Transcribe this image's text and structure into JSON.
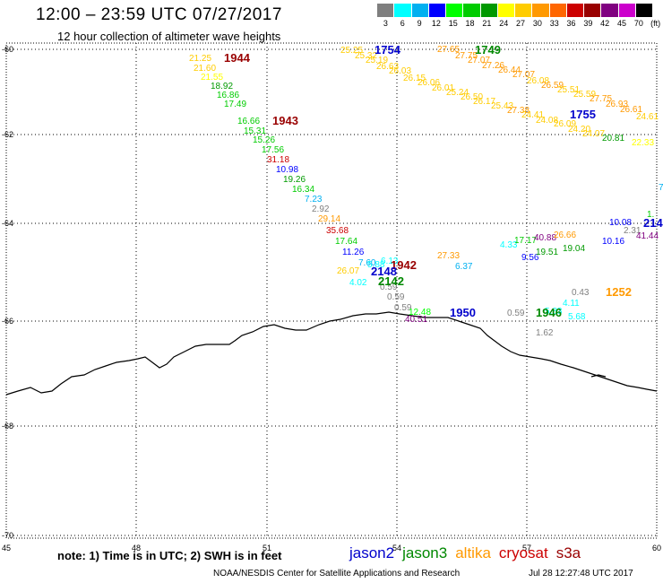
{
  "title": "12:00 – 23:59 UTC 07/27/2017",
  "subtitle": "12 hour collection of altimeter wave heights",
  "colorbar": {
    "unit": "(ft)",
    "ticks": [
      "3",
      "6",
      "9",
      "12",
      "15",
      "18",
      "21",
      "24",
      "27",
      "30",
      "33",
      "36",
      "39",
      "42",
      "45",
      "70"
    ],
    "colors": [
      "#7f7f7f",
      "#00ffff",
      "#00b0f0",
      "#0000ff",
      "#00ff00",
      "#00cc00",
      "#009900",
      "#ffff00",
      "#ffcc00",
      "#ff9900",
      "#ff6600",
      "#cc0000",
      "#990000",
      "#800080",
      "#cc00cc",
      "#000000"
    ]
  },
  "axes": {
    "lon_labels": [
      "45",
      "48",
      "51",
      "54",
      "57",
      "60"
    ],
    "lat_labels": [
      "-60",
      "-62",
      "-64",
      "-66",
      "-68",
      "-70"
    ]
  },
  "note": "note: 1) Time is in UTC; 2) SWH is in feet",
  "satellites": [
    {
      "name": "jason2",
      "color": "#0000cc"
    },
    {
      "name": "jason3",
      "color": "#008800"
    },
    {
      "name": "altika",
      "color": "#ff9900"
    },
    {
      "name": "cryosat",
      "color": "#cc0000"
    },
    {
      "name": "s3a",
      "color": "#990000"
    }
  ],
  "footer": "NOAA/NESDIS Center for Satellite Applications and Research",
  "timestamp": "Jul 28 12:27:48 UTC 2017",
  "track_labels": [
    {
      "text": "1944",
      "color": "#990000"
    },
    {
      "text": "1943",
      "color": "#990000"
    },
    {
      "text": "1754",
      "color": "#0000cc"
    },
    {
      "text": "1749",
      "color": "#008800"
    },
    {
      "text": "1755",
      "color": "#0000cc"
    },
    {
      "text": "1942",
      "color": "#990000"
    },
    {
      "text": "2148",
      "color": "#0000cc"
    },
    {
      "text": "2142",
      "color": "#008800"
    },
    {
      "text": "1950",
      "color": "#0000cc"
    },
    {
      "text": "1946",
      "color": "#008800"
    },
    {
      "text": "1252",
      "color": "#ff9900"
    },
    {
      "text": "214",
      "color": "#0000cc"
    }
  ],
  "swh_points": [
    {
      "text": "21.25",
      "color": "#ffcc00"
    },
    {
      "text": "21.60",
      "color": "#ffcc00"
    },
    {
      "text": "21.55",
      "color": "#ffff00"
    },
    {
      "text": "18.92",
      "color": "#009900"
    },
    {
      "text": "16.86",
      "color": "#00cc00"
    },
    {
      "text": "17.49",
      "color": "#00cc00"
    },
    {
      "text": "16.66",
      "color": "#00cc00"
    },
    {
      "text": "15.31",
      "color": "#00cc00"
    },
    {
      "text": "15.26",
      "color": "#00cc00"
    },
    {
      "text": "17.56",
      "color": "#00cc00"
    },
    {
      "text": "31.18",
      "color": "#cc0000"
    },
    {
      "text": "10.98",
      "color": "#0000ff"
    },
    {
      "text": "19.26",
      "color": "#009900"
    },
    {
      "text": "16.34",
      "color": "#00cc00"
    },
    {
      "text": "7.23",
      "color": "#00b0f0"
    },
    {
      "text": "2.92",
      "color": "#7f7f7f"
    },
    {
      "text": "29.14",
      "color": "#ff9900"
    },
    {
      "text": "35.68",
      "color": "#cc0000"
    },
    {
      "text": "17.64",
      "color": "#00cc00"
    },
    {
      "text": "11.26",
      "color": "#0000ff"
    },
    {
      "text": "7.60",
      "color": "#00b0f0"
    },
    {
      "text": "5.88",
      "color": "#00ffff"
    },
    {
      "text": "26.07",
      "color": "#ffcc00"
    },
    {
      "text": "4.02",
      "color": "#00ffff"
    },
    {
      "text": "6.13",
      "color": "#00ffff"
    },
    {
      "text": "27.33",
      "color": "#ff9900"
    },
    {
      "text": "6.37",
      "color": "#00b0f0"
    },
    {
      "text": "0.59",
      "color": "#7f7f7f"
    },
    {
      "text": "0.59",
      "color": "#7f7f7f"
    },
    {
      "text": "0.59",
      "color": "#7f7f7f"
    },
    {
      "text": "12.48",
      "color": "#00ff00"
    },
    {
      "text": "40.51",
      "color": "#800080"
    },
    {
      "text": "0.59",
      "color": "#7f7f7f"
    },
    {
      "text": "4.11",
      "color": "#00ffff"
    },
    {
      "text": "5.83",
      "color": "#00ffff"
    },
    {
      "text": "5.68",
      "color": "#00ffff"
    },
    {
      "text": "0.43",
      "color": "#7f7f7f"
    },
    {
      "text": "1.62",
      "color": "#7f7f7f"
    },
    {
      "text": "4.33",
      "color": "#00ffff"
    },
    {
      "text": "17.17",
      "color": "#00cc00"
    },
    {
      "text": "40.88",
      "color": "#800080"
    },
    {
      "text": "26.66",
      "color": "#ff9900"
    },
    {
      "text": "9.56",
      "color": "#0000ff"
    },
    {
      "text": "19.51",
      "color": "#009900"
    },
    {
      "text": "19.04",
      "color": "#009900"
    },
    {
      "text": "10.08",
      "color": "#0000ff"
    },
    {
      "text": "10.16",
      "color": "#0000ff"
    },
    {
      "text": "2.31",
      "color": "#7f7f7f"
    },
    {
      "text": "41.44",
      "color": "#800080"
    },
    {
      "text": "1.",
      "color": "#00cc00"
    },
    {
      "text": "25.25",
      "color": "#ffcc00"
    },
    {
      "text": "25.32",
      "color": "#ffcc00"
    },
    {
      "text": "25.19",
      "color": "#ffcc00"
    },
    {
      "text": "26.63",
      "color": "#ffcc00"
    },
    {
      "text": "26.03",
      "color": "#ffcc00"
    },
    {
      "text": "26.15",
      "color": "#ffcc00"
    },
    {
      "text": "26.06",
      "color": "#ffcc00"
    },
    {
      "text": "26.01",
      "color": "#ffcc00"
    },
    {
      "text": "25.24",
      "color": "#ffcc00"
    },
    {
      "text": "26.50",
      "color": "#ffcc00"
    },
    {
      "text": "26.17",
      "color": "#ffcc00"
    },
    {
      "text": "25.43",
      "color": "#ffcc00"
    },
    {
      "text": "27.38",
      "color": "#ff9900"
    },
    {
      "text": "24.41",
      "color": "#ffcc00"
    },
    {
      "text": "24.08",
      "color": "#ffcc00"
    },
    {
      "text": "26.09",
      "color": "#ffcc00"
    },
    {
      "text": "24.20",
      "color": "#ffcc00"
    },
    {
      "text": "24.07",
      "color": "#ffcc00"
    },
    {
      "text": "20.81",
      "color": "#009900"
    },
    {
      "text": "22.33",
      "color": "#ffff00"
    },
    {
      "text": "27.65",
      "color": "#ff9900"
    },
    {
      "text": "27.75",
      "color": "#ff9900"
    },
    {
      "text": "27.07",
      "color": "#ff9900"
    },
    {
      "text": "27.26",
      "color": "#ff9900"
    },
    {
      "text": "26.44",
      "color": "#ff9900"
    },
    {
      "text": "27.07",
      "color": "#ff9900"
    },
    {
      "text": "26.08",
      "color": "#ffcc00"
    },
    {
      "text": "26.59",
      "color": "#ff9900"
    },
    {
      "text": "25.51",
      "color": "#ffcc00"
    },
    {
      "text": "25.59",
      "color": "#ffcc00"
    },
    {
      "text": "27.75",
      "color": "#ff9900"
    },
    {
      "text": "26.93",
      "color": "#ff9900"
    },
    {
      "text": "26.61",
      "color": "#ff9900"
    },
    {
      "text": "24.61",
      "color": "#ffcc00"
    },
    {
      "text": "7",
      "color": "#00b0f0"
    }
  ]
}
